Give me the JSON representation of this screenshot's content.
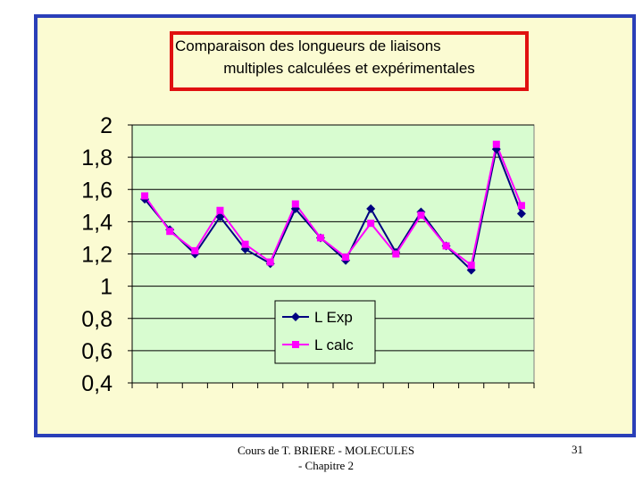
{
  "chart_data": {
    "type": "line",
    "title_lines": [
      "Comparaison des longueurs de liaisons",
      "multiples calculées et expérimentales"
    ],
    "x": [
      1,
      2,
      3,
      4,
      5,
      6,
      7,
      8,
      9,
      10,
      11,
      12,
      13,
      14,
      15,
      16
    ],
    "series": [
      {
        "name": "L Exp",
        "color": "#000080",
        "marker": "diamond",
        "values": [
          1.54,
          1.35,
          1.2,
          1.43,
          1.23,
          1.14,
          1.48,
          1.3,
          1.16,
          1.48,
          1.21,
          1.46,
          1.25,
          1.1,
          1.85,
          1.45
        ]
      },
      {
        "name": "L calc",
        "color": "#ff00ff",
        "marker": "square",
        "values": [
          1.56,
          1.34,
          1.22,
          1.47,
          1.26,
          1.15,
          1.51,
          1.3,
          1.18,
          1.39,
          1.2,
          1.44,
          1.25,
          1.13,
          1.88,
          1.5
        ]
      }
    ],
    "yticks": [
      "2",
      "1,8",
      "1,6",
      "1,4",
      "1,2",
      "1",
      "0,8",
      "0,6",
      "0,4"
    ],
    "ytick_values": [
      2,
      1.8,
      1.6,
      1.4,
      1.2,
      1,
      0.8,
      0.6,
      0.4
    ],
    "ylim": [
      0.4,
      2
    ],
    "grid": true,
    "legend_placement": "lower-center"
  },
  "footer": {
    "line1": "Cours de T. BRIERE - MOLECULES",
    "line2": "- Chapitre 2",
    "page": "31"
  }
}
